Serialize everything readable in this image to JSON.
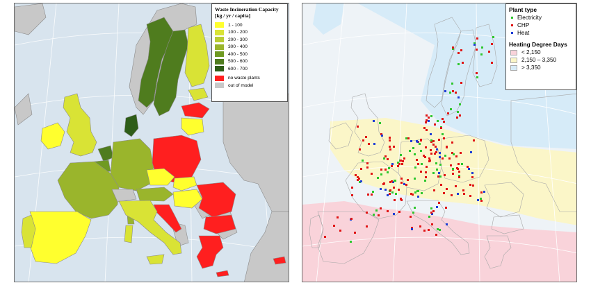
{
  "left_map": {
    "legend": {
      "title_line1": "Waste Incineration Capacity",
      "title_line2": "[kg / yr / capita]",
      "items": [
        {
          "label": "1 - 100",
          "color": "#ffff2e"
        },
        {
          "label": "100 - 200",
          "color": "#d9e335"
        },
        {
          "label": "200 - 300",
          "color": "#b9cc33"
        },
        {
          "label": "300 - 400",
          "color": "#9ab52c"
        },
        {
          "label": "400 - 500",
          "color": "#6f9a22"
        },
        {
          "label": "500 - 600",
          "color": "#4f7c1e"
        },
        {
          "label": "600 - 700",
          "color": "#2e5d18"
        },
        {
          "label": "no waste plants",
          "color": "#ff1f1f"
        },
        {
          "label": "out of model",
          "color": "#c8c8c8"
        }
      ]
    },
    "colors": {
      "sea": "#d8e4ee",
      "land": "#c8c8c8",
      "border": "#8a8a8a"
    }
  },
  "right_map": {
    "legend": {
      "plant_type_title": "Plant type",
      "plant_types": [
        {
          "label": "Electricity",
          "color": "#2ec72e"
        },
        {
          "label": "CHP",
          "color": "#e01515"
        },
        {
          "label": "Heat",
          "color": "#1f3fd6"
        }
      ],
      "hdd_title": "Heating Degree Days",
      "hdd_items": [
        {
          "label": "< 2,150",
          "color": "#f9d3da"
        },
        {
          "label": "2,150 – 3,350",
          "color": "#fbf6c8"
        },
        {
          "label": "> 3,350",
          "color": "#d6ebf8"
        }
      ]
    },
    "colors": {
      "sea": "#eef3f7",
      "border": "#b0b0b0"
    }
  }
}
